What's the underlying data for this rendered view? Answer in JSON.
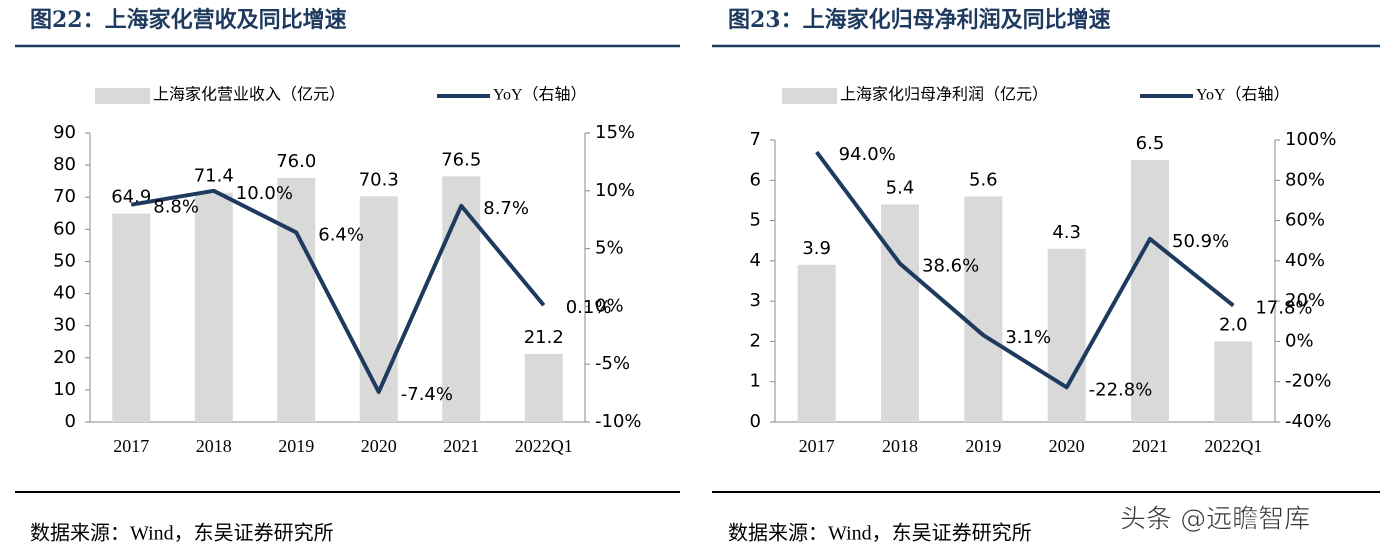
{
  "chart_data": [
    {
      "type": "bar",
      "title": "图22：上海家化营收及同比增速",
      "source": "数据来源：Wind，东吴证券研究所",
      "categories": [
        "2017",
        "2018",
        "2019",
        "2020",
        "2021",
        "2022Q1"
      ],
      "series": [
        {
          "name": "上海家化营业收入（亿元）",
          "color": "#d9d9d9",
          "values": [
            64.9,
            71.4,
            76.0,
            70.3,
            76.5,
            21.2
          ],
          "value_labels": [
            "64.9",
            "71.4",
            "76.0",
            "70.3",
            "76.5",
            "21.2"
          ]
        },
        {
          "name": "YoY（右轴）",
          "type": "line",
          "axis": "y2",
          "color": "#1f3a5f",
          "values": [
            8.8,
            10.0,
            6.4,
            -7.4,
            8.7,
            0.1
          ],
          "value_labels": [
            "8.8%",
            "10.0%",
            "6.4%",
            "-7.4%",
            "8.7%",
            "0.1%"
          ]
        }
      ],
      "ylim": [
        0,
        90
      ],
      "yticks": [
        0,
        10,
        20,
        30,
        40,
        50,
        60,
        70,
        80,
        90
      ],
      "y2lim": [
        -10,
        15
      ],
      "y2ticks": [
        {
          "value": -10,
          "label": "-10%"
        },
        {
          "value": -5,
          "label": "-5%"
        },
        {
          "value": 0,
          "label": "0%"
        },
        {
          "value": 5,
          "label": "5%"
        },
        {
          "value": 10,
          "label": "10%"
        },
        {
          "value": 15,
          "label": "15%"
        }
      ]
    },
    {
      "type": "bar",
      "title": "图23：上海家化归母净利润及同比增速",
      "source": "数据来源：Wind，东吴证券研究所",
      "categories": [
        "2017",
        "2018",
        "2019",
        "2020",
        "2021",
        "2022Q1"
      ],
      "series": [
        {
          "name": "上海家化归母净利润（亿元）",
          "color": "#d9d9d9",
          "values": [
            3.9,
            5.4,
            5.6,
            4.3,
            6.5,
            2.0
          ],
          "value_labels": [
            "3.9",
            "5.4",
            "5.6",
            "4.3",
            "6.5",
            "2.0"
          ]
        },
        {
          "name": "YoY（右轴）",
          "type": "line",
          "axis": "y2",
          "color": "#1f3a5f",
          "values": [
            94.0,
            38.6,
            3.1,
            -22.8,
            50.9,
            17.8
          ],
          "value_labels": [
            "94.0%",
            "38.6%",
            "3.1%",
            "-22.8%",
            "50.9%",
            "17.8%"
          ]
        }
      ],
      "ylim": [
        0,
        7
      ],
      "yticks": [
        0,
        1,
        2,
        3,
        4,
        5,
        6,
        7
      ],
      "y2lim": [
        -40,
        100
      ],
      "y2ticks": [
        {
          "value": -40,
          "label": "-40%"
        },
        {
          "value": -20,
          "label": "-20%"
        },
        {
          "value": 0,
          "label": "0%"
        },
        {
          "value": 20,
          "label": "20%"
        },
        {
          "value": 40,
          "label": "40%"
        },
        {
          "value": 60,
          "label": "60%"
        },
        {
          "value": 80,
          "label": "80%"
        },
        {
          "value": 100,
          "label": "100%"
        }
      ]
    }
  ],
  "watermark": "头条 @远瞻智库"
}
